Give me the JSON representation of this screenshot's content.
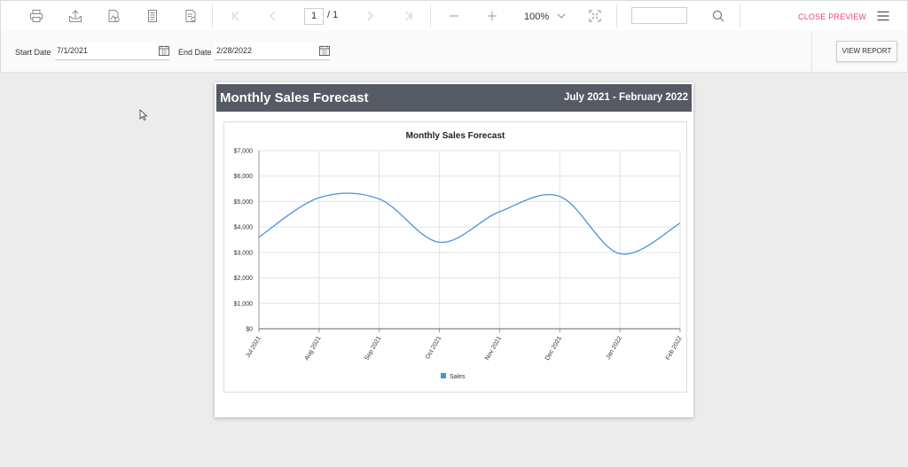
{
  "toolbar": {
    "icons": [
      "print-icon",
      "export-icon",
      "page-setup-icon",
      "page-view-icon",
      "parameters-icon",
      "first-page-icon",
      "previous-page-icon",
      "next-page-icon",
      "last-page-icon",
      "zoom-out-icon",
      "zoom-in-icon",
      "fit-page-icon",
      "search-icon",
      "menu-icon"
    ],
    "page_current": "1",
    "page_total": "/ 1",
    "zoom": "100%",
    "close_preview": "CLOSE PREVIEW"
  },
  "parameters": {
    "start_label": "Start Date",
    "start_value": "7/1/2021",
    "end_label": "End Date",
    "end_value": "2/28/2022",
    "view_report": "VIEW REPORT"
  },
  "report": {
    "header_title": "Monthly Sales Forecast",
    "header_range": "July 2021 - February 2022"
  },
  "chart_data": {
    "type": "line",
    "title": "Monthly Sales Forecast",
    "categories": [
      "Jul 2021",
      "Aug 2021",
      "Sep 2021",
      "Oct 2021",
      "Nov 2021",
      "Dec 2021",
      "Jan 2022",
      "Feb 2022"
    ],
    "series": [
      {
        "name": "Sales",
        "color": "#4a90e2",
        "values": [
          3600,
          5150,
          5100,
          3400,
          4600,
          5200,
          2950,
          4150
        ]
      }
    ],
    "ylim": [
      0,
      7000
    ],
    "yticks": [
      "$0",
      "$1,000",
      "$2,000",
      "$3,000",
      "$4,000",
      "$5,000",
      "$6,000",
      "$7,000"
    ],
    "grid": true,
    "legend": "bottom"
  }
}
